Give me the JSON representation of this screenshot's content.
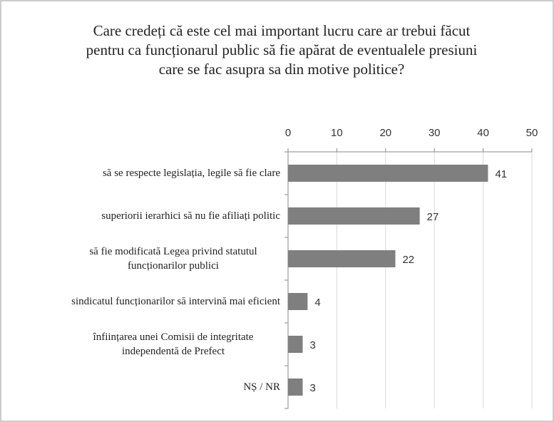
{
  "chart_data": {
    "type": "bar",
    "orientation": "horizontal",
    "title": "Care credeți că este cel mai important lucru care ar trebui făcut pentru ca funcționarul public să fie apărat de eventualele presiuni care se fac asupra sa din motive politice?",
    "categories": [
      "să se respecte legislația, legile să fie clare",
      "superiorii ierarhici să nu fie afiliați politic",
      "să fie modificată Legea privind statutul funcționarilor publici",
      "sindicatul funcționarilor să intervină mai eficient",
      "înființarea unei Comisii de integritate independentă de Prefect",
      "NȘ / NR"
    ],
    "values": [
      41,
      27,
      22,
      4,
      3,
      3
    ],
    "color": "#7f7f7f",
    "xlim": [
      0,
      50
    ],
    "xticks": [
      0,
      10,
      20,
      30,
      40,
      50
    ],
    "grid": true
  }
}
